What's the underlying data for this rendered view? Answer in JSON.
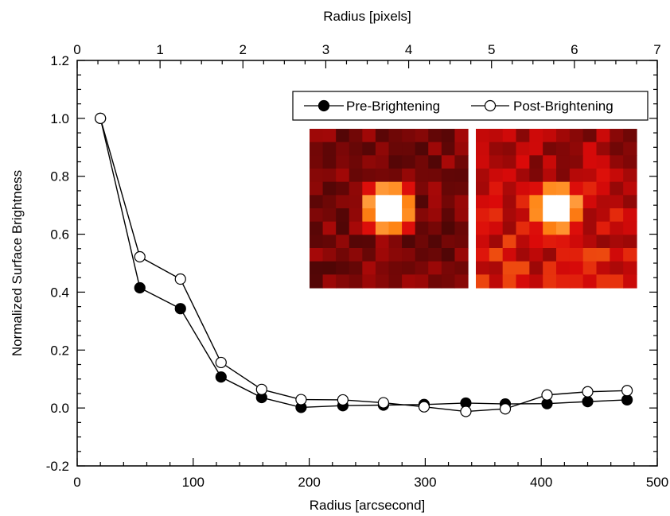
{
  "chart_data": {
    "type": "line",
    "x_label": "Radius [arcsecond]",
    "x_top_label": "Radius [pixels]",
    "y_label": "Normalized Surface Brightness",
    "xlim": [
      0,
      500
    ],
    "ylim": [
      -0.2,
      1.2
    ],
    "x_ticks": [
      0,
      100,
      200,
      300,
      400,
      500
    ],
    "x_top_ticks": [
      0,
      1,
      2,
      3,
      4,
      5,
      6,
      7
    ],
    "y_ticks": [
      -0.2,
      0.0,
      0.2,
      0.4,
      0.6,
      0.8,
      1.0,
      1.2
    ],
    "y_tick_labels": [
      "-0.2",
      "0.0",
      "0.2",
      "0.4",
      "0.6",
      "0.8",
      "1.0",
      "1.2"
    ],
    "legend_position": "top-right",
    "series": [
      {
        "name": "Pre-Brightening",
        "marker": "filled-circle",
        "color": "#000000",
        "x": [
          20,
          54,
          89,
          124,
          159,
          193,
          229,
          264,
          299,
          335,
          369,
          405,
          440,
          474
        ],
        "y": [
          1.0,
          0.415,
          0.343,
          0.107,
          0.036,
          0.002,
          0.008,
          0.01,
          0.012,
          0.017,
          0.014,
          0.015,
          0.022,
          0.028
        ]
      },
      {
        "name": "Post-Brightening",
        "marker": "open-circle",
        "color": "#000000",
        "x": [
          20,
          54,
          89,
          124,
          159,
          193,
          229,
          264,
          299,
          335,
          369,
          405,
          440,
          474
        ],
        "y": [
          1.0,
          0.522,
          0.445,
          0.157,
          0.064,
          0.029,
          0.028,
          0.018,
          0.004,
          -0.012,
          -0.003,
          0.045,
          0.056,
          0.06
        ]
      }
    ],
    "insets": [
      {
        "name": "pre-brightening-image",
        "colormap": "red-heat",
        "grid": 12
      },
      {
        "name": "post-brightening-image",
        "colormap": "red-heat",
        "grid": 12
      }
    ]
  }
}
